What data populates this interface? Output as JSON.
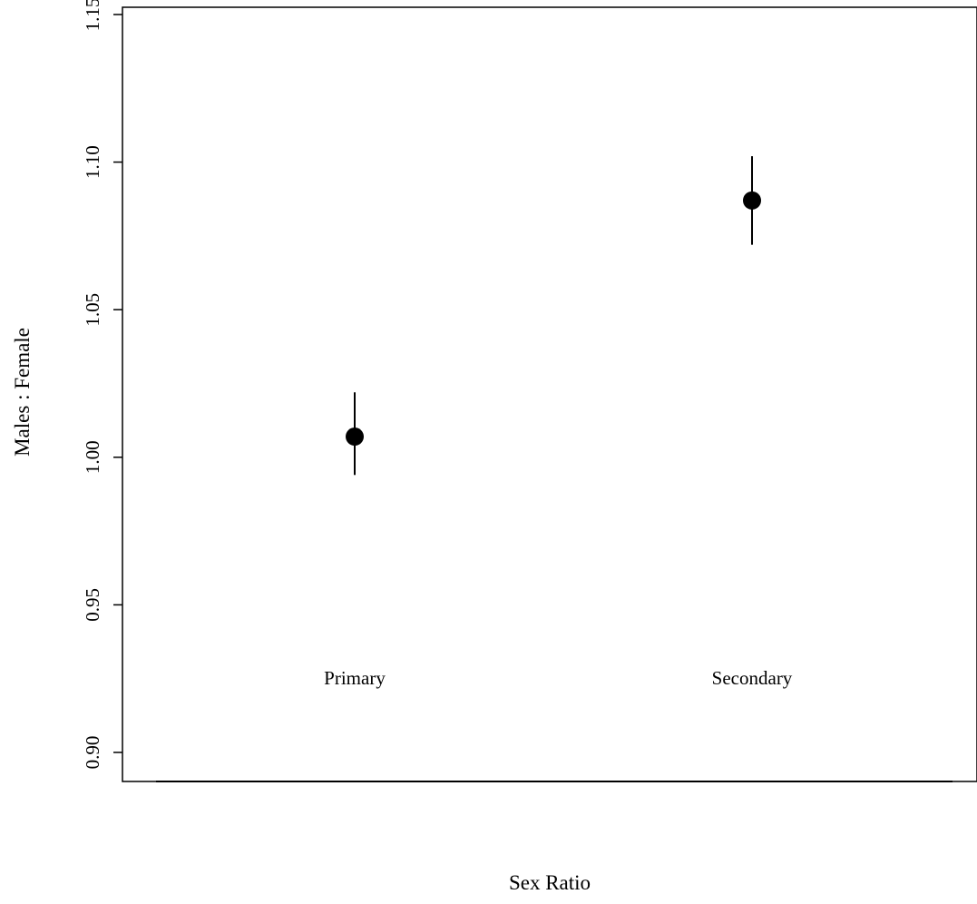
{
  "chart_data": {
    "type": "scatter",
    "title": "",
    "xlabel": "Sex Ratio",
    "ylabel": "Males : Female",
    "categories": [
      "Primary",
      "Secondary"
    ],
    "series": [
      {
        "values": [
          1.007,
          1.087
        ],
        "error_low": [
          0.994,
          1.072
        ],
        "error_high": [
          1.022,
          1.102
        ]
      }
    ],
    "yticks": [
      "0.90",
      "0.95",
      "1.00",
      "1.05",
      "1.10",
      "1.15"
    ],
    "ylim": [
      0.89,
      1.16
    ],
    "grid": false,
    "legend": "none",
    "colors": {
      "marker": "#000000",
      "axis": "#000000",
      "background": "#ffffff"
    }
  }
}
